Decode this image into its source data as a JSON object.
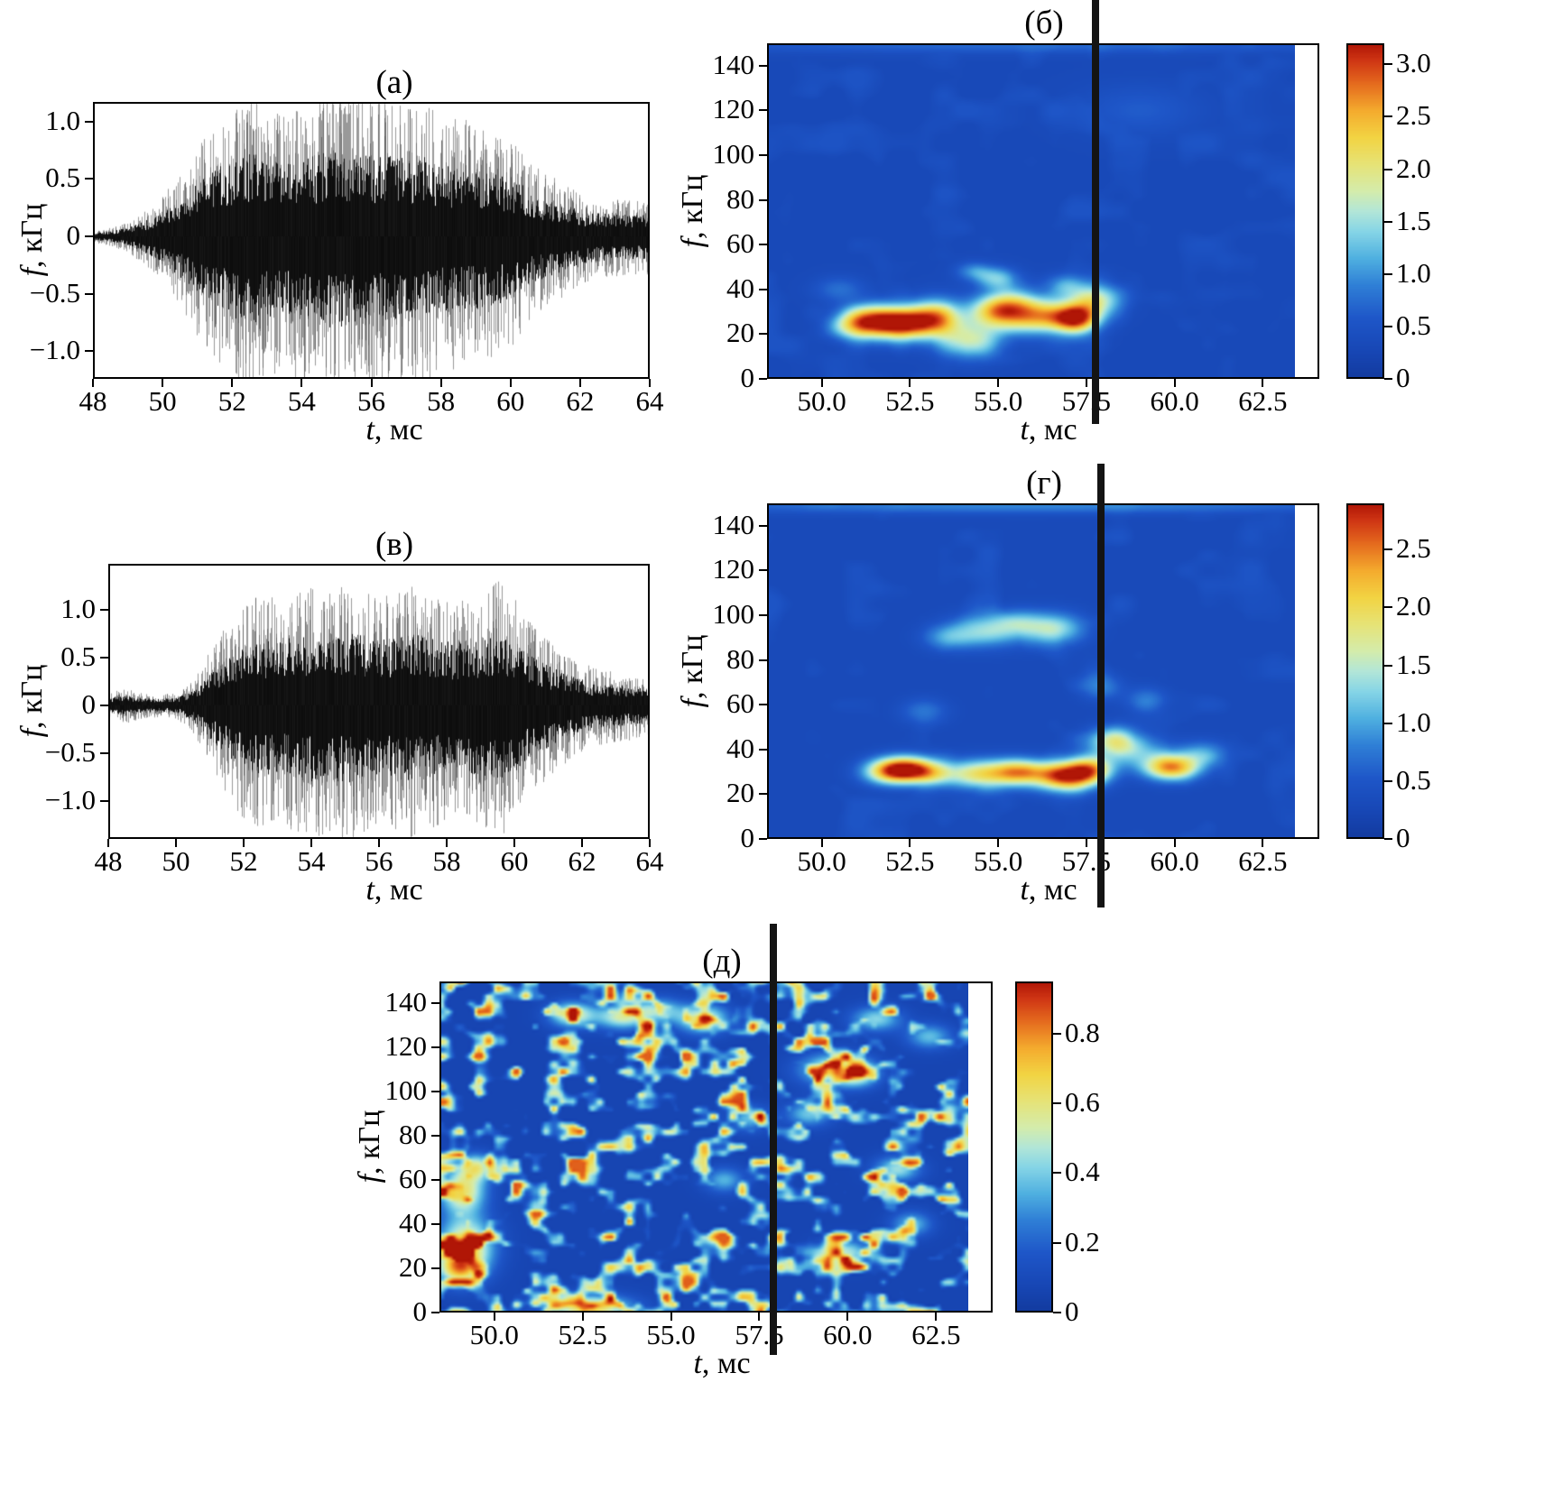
{
  "colors": {
    "background": "#ffffff",
    "axis": "#000000",
    "text": "#000000",
    "waveform_core": "#0a0a0a",
    "waveform_spikes": "#464646",
    "cursor_line": "#141414"
  },
  "colormap": {
    "name": "jet-like",
    "stops": [
      {
        "p": 0.0,
        "c": "#123a9e"
      },
      {
        "p": 0.08,
        "c": "#1746b4"
      },
      {
        "p": 0.18,
        "c": "#1e56c8"
      },
      {
        "p": 0.28,
        "c": "#2f7fd6"
      },
      {
        "p": 0.36,
        "c": "#4fb0e0"
      },
      {
        "p": 0.44,
        "c": "#86d5e6"
      },
      {
        "p": 0.5,
        "c": "#b2e6d8"
      },
      {
        "p": 0.56,
        "c": "#d4ecac"
      },
      {
        "p": 0.64,
        "c": "#e6e377"
      },
      {
        "p": 0.72,
        "c": "#f2d443"
      },
      {
        "p": 0.8,
        "c": "#f4ab2e"
      },
      {
        "p": 0.88,
        "c": "#e56b1e"
      },
      {
        "p": 0.95,
        "c": "#cf3514"
      },
      {
        "p": 1.0,
        "c": "#b01606"
      }
    ]
  },
  "chart_data": [
    {
      "id": "a",
      "type": "line",
      "panel_label": "(а)",
      "xlabel": {
        "var": "t",
        "unit": ", мс"
      },
      "ylabel": {
        "var": "f",
        "unit": ", кГц"
      },
      "xlim": [
        48,
        64
      ],
      "ylim": [
        -1.24,
        1.17
      ],
      "xticks": {
        "values": [
          48,
          50,
          52,
          54,
          56,
          58,
          60,
          62,
          64
        ],
        "labels": [
          "48",
          "50",
          "52",
          "54",
          "56",
          "58",
          "60",
          "62",
          "64"
        ]
      },
      "yticks": {
        "values": [
          1.0,
          0.5,
          0,
          -0.5,
          -1.0
        ],
        "labels": [
          "1.0",
          "0.5",
          "0",
          "−0.5",
          "−1.0"
        ]
      },
      "signal": "broadband acoustic noise burst",
      "seed": 17,
      "envelope": {
        "t": [
          48,
          48.5,
          49,
          49.5,
          50,
          50.5,
          51,
          51.5,
          52,
          52.5,
          53,
          53.5,
          54,
          54.5,
          55,
          55.5,
          56,
          56.5,
          57,
          57.5,
          58,
          58.5,
          59,
          59.5,
          60,
          60.5,
          61,
          61.5,
          62,
          62.5,
          63,
          63.5,
          64
        ],
        "a": [
          0.04,
          0.06,
          0.1,
          0.18,
          0.28,
          0.45,
          0.62,
          0.78,
          0.9,
          1.0,
          0.88,
          0.85,
          0.92,
          0.96,
          1.02,
          1.0,
          0.97,
          0.95,
          0.9,
          0.93,
          0.85,
          0.82,
          0.8,
          0.75,
          0.7,
          0.55,
          0.45,
          0.38,
          0.3,
          0.27,
          0.26,
          0.25,
          0.25
        ]
      }
    },
    {
      "id": "b",
      "type": "heatmap",
      "panel_label": "(б)",
      "xlabel": {
        "var": "t",
        "unit": ", мс"
      },
      "ylabel": {
        "var": "f",
        "unit": ", кГц"
      },
      "xlim": [
        48.45,
        64.1
      ],
      "data_trange": [
        48.5,
        63.4
      ],
      "flim": [
        0,
        150
      ],
      "xticks": {
        "values": [
          50,
          52.5,
          55,
          57.5,
          60,
          62.5
        ],
        "labels": [
          "50.0",
          "52.5",
          "55.0",
          "57.5",
          "60.0",
          "62.5"
        ]
      },
      "yticks": {
        "values": [
          0,
          20,
          40,
          60,
          80,
          100,
          120,
          140
        ],
        "labels": [
          "0",
          "20",
          "40",
          "60",
          "80",
          "100",
          "120",
          "140"
        ]
      },
      "vmax": 3.2,
      "base": 0.32,
      "noise": {
        "mode": "smooth",
        "amp": 0.22,
        "nx": 13,
        "ny": 11,
        "seed": 211
      },
      "cursor_t": 57.75,
      "colorbar": {
        "vmax": 3.2,
        "ticks": {
          "values": [
            0,
            0.5,
            1,
            1.5,
            2,
            2.5,
            3
          ],
          "labels": [
            "0",
            "0.5",
            "1.0",
            "1.5",
            "2.0",
            "2.5",
            "3.0"
          ]
        }
      },
      "hotspots": [
        {
          "t": 52.4,
          "f": 25,
          "st": 0.8,
          "sf": 5.0,
          "a": 2.9
        },
        {
          "t": 51.5,
          "f": 26,
          "st": 0.55,
          "sf": 5.0,
          "a": 1.3
        },
        {
          "t": 50.9,
          "f": 24,
          "st": 0.45,
          "sf": 4.5,
          "a": 1.1
        },
        {
          "t": 53.3,
          "f": 29,
          "st": 0.5,
          "sf": 5.5,
          "a": 1.15
        },
        {
          "t": 54.2,
          "f": 17,
          "st": 0.6,
          "sf": 5.5,
          "a": 1.35
        },
        {
          "t": 54.8,
          "f": 30,
          "st": 0.5,
          "sf": 5.0,
          "a": 1.2
        },
        {
          "t": 55.4,
          "f": 31,
          "st": 0.55,
          "sf": 6.0,
          "a": 1.9
        },
        {
          "t": 56.3,
          "f": 28,
          "st": 0.55,
          "sf": 5.0,
          "a": 1.6
        },
        {
          "t": 57.2,
          "f": 27,
          "st": 0.45,
          "sf": 4.5,
          "a": 2.7
        },
        {
          "t": 57.7,
          "f": 35,
          "st": 0.5,
          "sf": 5.0,
          "a": 1.45
        },
        {
          "t": 55.0,
          "f": 45,
          "st": 0.4,
          "sf": 3.5,
          "a": 0.8
        },
        {
          "t": 54.3,
          "f": 48,
          "st": 0.35,
          "sf": 3.0,
          "a": 0.65
        },
        {
          "t": 56.9,
          "f": 42,
          "st": 0.4,
          "sf": 3.5,
          "a": 0.7
        },
        {
          "t": 50.5,
          "f": 40,
          "st": 0.5,
          "sf": 4.0,
          "a": 0.45
        },
        {
          "t": 55.5,
          "f": 149,
          "st": 7.0,
          "sf": 2.5,
          "a": 0.4
        },
        {
          "t": 59.0,
          "f": 120,
          "st": 1.2,
          "sf": 8.0,
          "a": 0.3
        }
      ]
    },
    {
      "id": "v",
      "type": "line",
      "panel_label": "(в)",
      "xlabel": {
        "var": "t",
        "unit": ", мс"
      },
      "ylabel": {
        "var": "f",
        "unit": ", кГц"
      },
      "xlim": [
        48,
        64
      ],
      "ylim": [
        -1.4,
        1.48
      ],
      "xticks": {
        "values": [
          48,
          50,
          52,
          54,
          56,
          58,
          60,
          62,
          64
        ],
        "labels": [
          "48",
          "50",
          "52",
          "54",
          "56",
          "58",
          "60",
          "62",
          "64"
        ]
      },
      "yticks": {
        "values": [
          1.0,
          0.5,
          0,
          -0.5,
          -1.0
        ],
        "labels": [
          "1.0",
          "0.5",
          "0",
          "−0.5",
          "−1.0"
        ]
      },
      "signal": "broadband acoustic noise burst",
      "seed": 29,
      "envelope": {
        "t": [
          48,
          48.5,
          49,
          49.5,
          50,
          50.5,
          51,
          51.5,
          52,
          52.5,
          53,
          53.5,
          54,
          54.5,
          55,
          55.5,
          56,
          56.5,
          57,
          57.5,
          58,
          58.5,
          59,
          59.5,
          60,
          60.5,
          61,
          61.5,
          62,
          62.5,
          63,
          63.5,
          64
        ],
        "a": [
          0.1,
          0.14,
          0.1,
          0.09,
          0.1,
          0.2,
          0.45,
          0.68,
          0.85,
          0.92,
          0.9,
          0.95,
          1.0,
          0.97,
          1.02,
          0.98,
          0.92,
          0.95,
          1.0,
          0.95,
          0.9,
          0.88,
          0.92,
          1.05,
          0.9,
          0.7,
          0.55,
          0.45,
          0.36,
          0.3,
          0.28,
          0.26,
          0.25
        ]
      }
    },
    {
      "id": "g",
      "type": "heatmap",
      "panel_label": "(г)",
      "xlabel": {
        "var": "t",
        "unit": ", мс"
      },
      "ylabel": {
        "var": "f",
        "unit": ", кГц"
      },
      "xlim": [
        48.45,
        64.1
      ],
      "data_trange": [
        48.5,
        63.4
      ],
      "flim": [
        0,
        150
      ],
      "xticks": {
        "values": [
          50,
          52.5,
          55,
          57.5,
          60,
          62.5
        ],
        "labels": [
          "50.0",
          "52.5",
          "55.0",
          "57.5",
          "60.0",
          "62.5"
        ]
      },
      "yticks": {
        "values": [
          0,
          20,
          40,
          60,
          80,
          100,
          120,
          140
        ],
        "labels": [
          "0",
          "20",
          "40",
          "60",
          "80",
          "100",
          "120",
          "140"
        ]
      },
      "vmax": 2.9,
      "base": 0.3,
      "noise": {
        "mode": "smooth",
        "amp": 0.2,
        "nx": 13,
        "ny": 11,
        "seed": 311
      },
      "cursor_t": 57.9,
      "colorbar": {
        "vmax": 2.9,
        "ticks": {
          "values": [
            0,
            0.5,
            1,
            1.5,
            2,
            2.5
          ],
          "labels": [
            "0",
            "0.5",
            "1.0",
            "1.5",
            "2.0",
            "2.5"
          ]
        }
      },
      "hotspots": [
        {
          "t": 52.4,
          "f": 31,
          "st": 0.55,
          "sf": 4.0,
          "a": 2.45
        },
        {
          "t": 51.8,
          "f": 30,
          "st": 0.5,
          "sf": 4.0,
          "a": 1.1
        },
        {
          "t": 53.1,
          "f": 29,
          "st": 0.4,
          "sf": 4.0,
          "a": 0.8
        },
        {
          "t": 54.5,
          "f": 29,
          "st": 0.75,
          "sf": 4.5,
          "a": 1.6
        },
        {
          "t": 55.6,
          "f": 30,
          "st": 0.5,
          "sf": 4.0,
          "a": 1.5
        },
        {
          "t": 56.9,
          "f": 28,
          "st": 0.6,
          "sf": 4.5,
          "a": 2.45
        },
        {
          "t": 57.6,
          "f": 31,
          "st": 0.45,
          "sf": 4.0,
          "a": 1.5
        },
        {
          "t": 59.9,
          "f": 32,
          "st": 0.55,
          "sf": 4.0,
          "a": 2.1
        },
        {
          "t": 58.6,
          "f": 40,
          "st": 0.7,
          "sf": 5.0,
          "a": 1.0
        },
        {
          "t": 58.2,
          "f": 45,
          "st": 0.45,
          "sf": 4.0,
          "a": 0.8
        },
        {
          "t": 60.8,
          "f": 38,
          "st": 0.5,
          "sf": 4.0,
          "a": 0.7
        },
        {
          "t": 54.7,
          "f": 93,
          "st": 0.7,
          "sf": 5.0,
          "a": 1.0
        },
        {
          "t": 56.6,
          "f": 94,
          "st": 0.6,
          "sf": 5.0,
          "a": 1.05
        },
        {
          "t": 53.6,
          "f": 90,
          "st": 0.5,
          "sf": 4.0,
          "a": 0.6
        },
        {
          "t": 55.6,
          "f": 97,
          "st": 0.5,
          "sf": 4.0,
          "a": 0.6
        },
        {
          "t": 57.9,
          "f": 68,
          "st": 0.4,
          "sf": 4.0,
          "a": 0.55
        },
        {
          "t": 59.2,
          "f": 62,
          "st": 0.4,
          "sf": 4.0,
          "a": 0.5
        },
        {
          "t": 52.9,
          "f": 57,
          "st": 0.45,
          "sf": 4.0,
          "a": 0.45
        },
        {
          "t": 55.8,
          "f": 149,
          "st": 7.0,
          "sf": 2.5,
          "a": 0.55
        }
      ]
    },
    {
      "id": "d",
      "type": "heatmap",
      "panel_label": "(д)",
      "xlabel": {
        "var": "t",
        "unit": ", мс"
      },
      "ylabel": {
        "var": "f",
        "unit": ", кГц"
      },
      "xlim": [
        48.45,
        64.1
      ],
      "data_trange": [
        48.5,
        63.4
      ],
      "flim": [
        0,
        150
      ],
      "xticks": {
        "values": [
          50,
          52.5,
          55,
          57.5,
          60,
          62.5
        ],
        "labels": [
          "50.0",
          "52.5",
          "55.0",
          "57.5",
          "60.0",
          "62.5"
        ]
      },
      "yticks": {
        "values": [
          0,
          20,
          40,
          60,
          80,
          100,
          120,
          140
        ],
        "labels": [
          "0",
          "20",
          "40",
          "60",
          "80",
          "100",
          "120",
          "140"
        ]
      },
      "vmax": 0.95,
      "base": 0.07,
      "noise": {
        "mode": "speckle",
        "gain": 0.78,
        "nx": 29,
        "ny": 23,
        "seed": 411
      },
      "cursor_t": 57.9,
      "colorbar": {
        "vmax": 0.95,
        "ticks": {
          "values": [
            0,
            0.2,
            0.4,
            0.6,
            0.8
          ],
          "labels": [
            "0",
            "0.2",
            "0.4",
            "0.6",
            "0.8"
          ]
        }
      },
      "hotspots": [
        {
          "t": 49.2,
          "f": 30,
          "st": 0.55,
          "sf": 9.0,
          "a": 0.6
        },
        {
          "t": 49.0,
          "f": 20,
          "st": 0.4,
          "sf": 5.0,
          "a": 0.5
        },
        {
          "t": 49.1,
          "f": 55,
          "st": 0.45,
          "sf": 7.0,
          "a": 0.55
        },
        {
          "t": 49.5,
          "f": 66,
          "st": 0.35,
          "sf": 4.0,
          "a": 0.45
        },
        {
          "t": 52.7,
          "f": 2,
          "st": 0.8,
          "sf": 4.0,
          "a": 0.62
        },
        {
          "t": 52.2,
          "f": 135,
          "st": 0.45,
          "sf": 4.0,
          "a": 0.5
        },
        {
          "t": 53.6,
          "f": 134,
          "st": 0.5,
          "sf": 4.0,
          "a": 0.45
        },
        {
          "t": 55.9,
          "f": 133,
          "st": 0.5,
          "sf": 4.5,
          "a": 0.5
        },
        {
          "t": 54.6,
          "f": 137,
          "st": 0.5,
          "sf": 4.0,
          "a": 0.35
        },
        {
          "t": 59.6,
          "f": 110,
          "st": 0.65,
          "sf": 5.0,
          "a": 0.5
        },
        {
          "t": 60.3,
          "f": 108,
          "st": 0.4,
          "sf": 4.0,
          "a": 0.35
        },
        {
          "t": 59.9,
          "f": 27,
          "st": 0.5,
          "sf": 4.0,
          "a": 0.42
        },
        {
          "t": 58.9,
          "f": 90,
          "st": 0.45,
          "sf": 4.0,
          "a": 0.32
        },
        {
          "t": 61.4,
          "f": 65,
          "st": 0.45,
          "sf": 4.0,
          "a": 0.38
        },
        {
          "t": 62.3,
          "f": 125,
          "st": 0.45,
          "sf": 4.0,
          "a": 0.3
        },
        {
          "t": 61.8,
          "f": 40,
          "st": 0.4,
          "sf": 4.0,
          "a": 0.3
        },
        {
          "t": 60.8,
          "f": 133,
          "st": 0.5,
          "sf": 4.0,
          "a": 0.35
        },
        {
          "t": 57.2,
          "f": 88,
          "st": 0.4,
          "sf": 4.0,
          "a": 0.3
        },
        {
          "t": 56.5,
          "f": 60,
          "st": 0.4,
          "sf": 4.0,
          "a": 0.28
        }
      ]
    }
  ]
}
